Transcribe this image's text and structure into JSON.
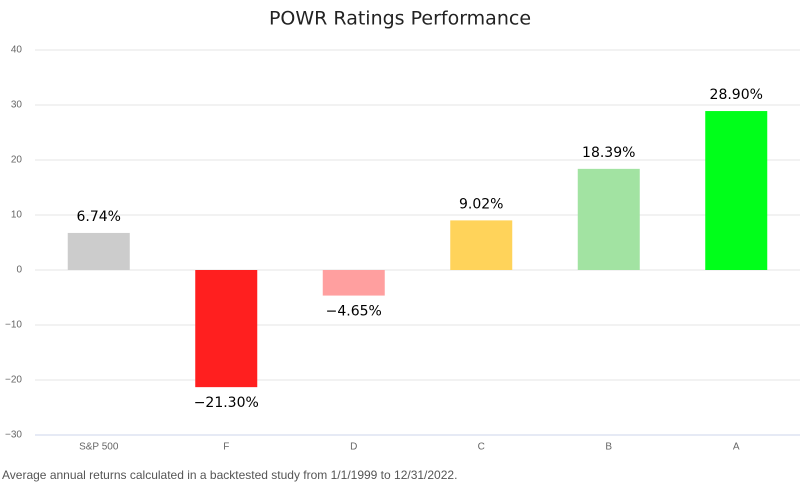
{
  "chart_data": {
    "type": "bar",
    "title": "POWR Ratings Performance",
    "categories": [
      "S&P 500",
      "F",
      "D",
      "C",
      "B",
      "A"
    ],
    "values": [
      6.74,
      -21.3,
      -4.65,
      9.02,
      18.39,
      28.9
    ],
    "value_labels": [
      "6.74%",
      "−21.30%",
      "−4.65%",
      "9.02%",
      "18.39%",
      "28.90%"
    ],
    "colors": [
      "#cccccc",
      "#ff1f1f",
      "#ff9f9f",
      "#ffd35a",
      "#a2e3a2",
      "#00ff1a"
    ],
    "ylim": [
      -30,
      40
    ],
    "yticks": [
      {
        "value": -30,
        "label": "−30"
      },
      {
        "value": -20,
        "label": "−20"
      },
      {
        "value": -10,
        "label": "−10"
      },
      0,
      10,
      20,
      30,
      40
    ],
    "grid": true,
    "note": "Average annual returns calculated in a backtested study from 1/1/1999 to 12/31/2022."
  }
}
